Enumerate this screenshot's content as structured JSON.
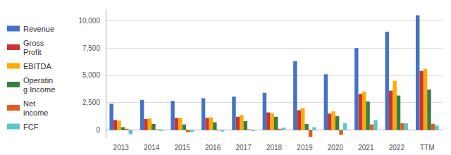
{
  "chart_data": {
    "type": "bar",
    "categories": [
      "2013",
      "2014",
      "2015",
      "2016",
      "2017",
      "2018",
      "2019",
      "2020",
      "2021",
      "2022",
      "TTM"
    ],
    "series": [
      {
        "name": "Revenue",
        "color": "#4472C4",
        "values": [
          2400,
          2750,
          2650,
          2900,
          3050,
          3400,
          6300,
          5100,
          7500,
          9000,
          10500
        ]
      },
      {
        "name": "Gross\nProfit",
        "color": "#CC3333",
        "values": [
          900,
          1000,
          1100,
          1100,
          1200,
          1600,
          1800,
          1500,
          3300,
          3600,
          5400
        ]
      },
      {
        "name": "EBITDA",
        "color": "#FFAA00",
        "values": [
          850,
          1050,
          1100,
          1150,
          1350,
          1500,
          2000,
          1700,
          3500,
          4500,
          5600
        ]
      },
      {
        "name": "Operatin\ng Income",
        "color": "#3A7D44",
        "values": [
          250,
          550,
          500,
          700,
          800,
          1200,
          550,
          1250,
          2600,
          3150,
          3700
        ]
      },
      {
        "name": "Net\nincome",
        "color": "#E05C20",
        "values": [
          100,
          50,
          -200,
          -50,
          50,
          100,
          -650,
          -450,
          500,
          600,
          550
        ]
      },
      {
        "name": "FCF",
        "color": "#5BC8C8",
        "values": [
          -400,
          -100,
          -200,
          -150,
          -100,
          200,
          250,
          600,
          900,
          600,
          400
        ]
      }
    ],
    "ylim": [
      -750,
      11000
    ],
    "yticks": [
      0,
      {
        "value": 2500,
        "label": "2,500"
      },
      {
        "value": 5000,
        "label": "5,000"
      },
      {
        "value": 7500,
        "label": "7,500"
      },
      {
        "value": 10000,
        "label": "10,000"
      }
    ],
    "grid": true,
    "legend": "left"
  }
}
